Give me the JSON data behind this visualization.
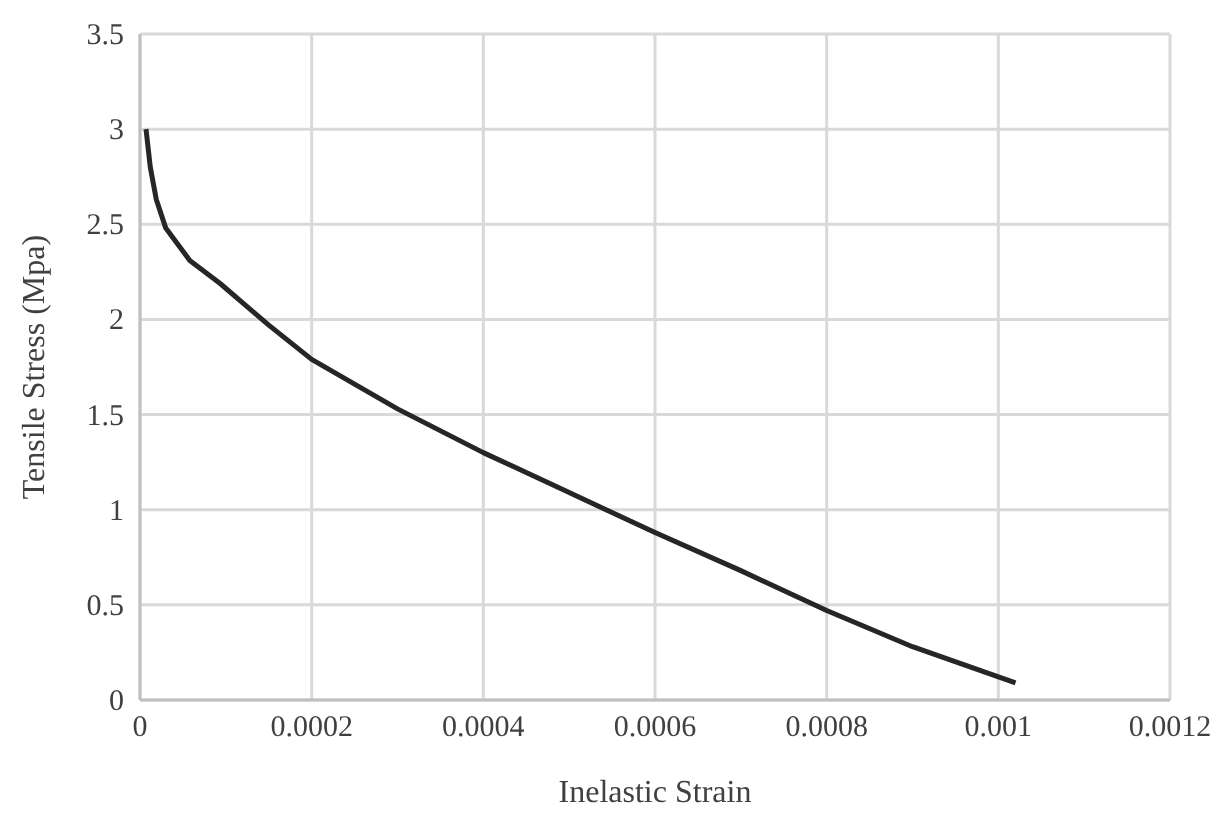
{
  "chart_data": {
    "type": "line",
    "xlabel": "Inelastic Strain",
    "ylabel": "Tensile Stress (Mpa)",
    "x": [
      7e-06,
      1.2e-05,
      1.9e-05,
      3e-05,
      5.8e-05,
      9.3e-05,
      0.00015,
      0.0002,
      0.0003,
      0.0004,
      0.0005,
      0.0006,
      0.0007,
      0.0008,
      0.0009,
      0.00102
    ],
    "series": [
      {
        "color": "#262626",
        "values": [
          3.0,
          2.8,
          2.63,
          2.48,
          2.31,
          2.19,
          1.97,
          1.79,
          1.53,
          1.3,
          1.09,
          0.88,
          0.68,
          0.47,
          0.28,
          0.09
        ]
      }
    ],
    "xlim": [
      0,
      0.0012
    ],
    "xticks": [
      0,
      0.0002,
      0.0004,
      0.0006,
      0.0008,
      0.001,
      0.0012
    ],
    "ylim": [
      0,
      3.5
    ],
    "yticks": [
      0,
      0.5,
      1,
      1.5,
      2,
      2.5,
      3,
      3.5
    ],
    "grid": true,
    "marker": "none",
    "line_style": "solid"
  }
}
